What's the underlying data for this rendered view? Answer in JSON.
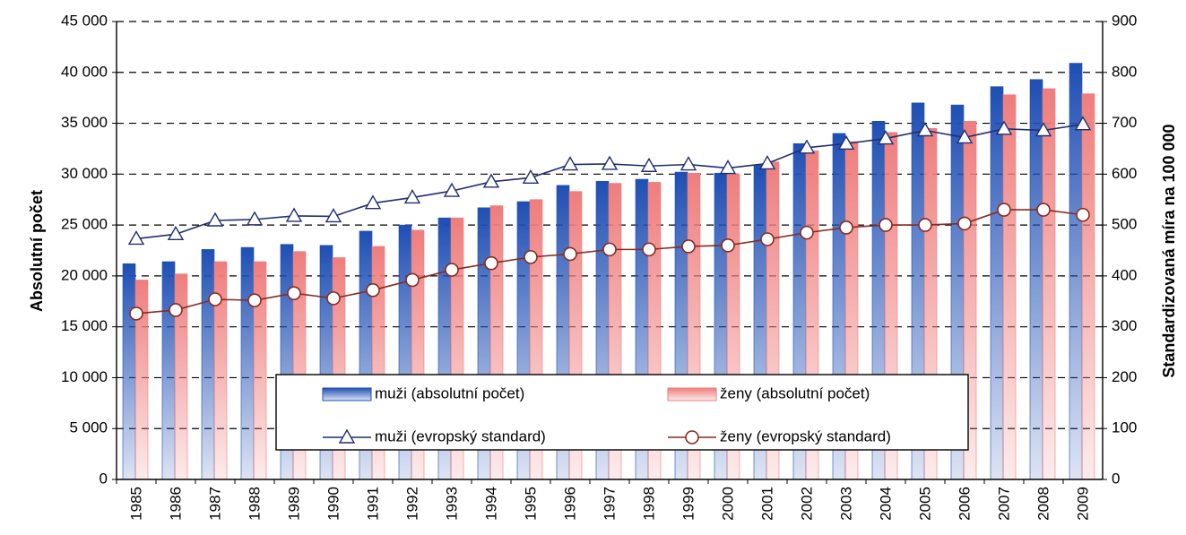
{
  "chart_data": {
    "type": "bar",
    "y_label": "Absolutní počet",
    "y2_label": "Standardizovaná míra na 100 000",
    "categories": [
      "1985",
      "1986",
      "1987",
      "1988",
      "1989",
      "1990",
      "1991",
      "1992",
      "1993",
      "1994",
      "1995",
      "1996",
      "1997",
      "1998",
      "1999",
      "2000",
      "2001",
      "2002",
      "2003",
      "2004",
      "2005",
      "2006",
      "2007",
      "2008",
      "2009"
    ],
    "series": [
      {
        "name": "muži (absolutní počet)",
        "type": "bar",
        "color": "#1f4fb4",
        "values": [
          21200,
          21400,
          22600,
          22800,
          23100,
          23000,
          24400,
          25000,
          25700,
          26700,
          27300,
          28900,
          29300,
          29500,
          30200,
          30100,
          30900,
          33000,
          34000,
          35200,
          37000,
          36800,
          38600,
          39300,
          40900
        ]
      },
      {
        "name": "ženy (absolutní počet)",
        "type": "bar",
        "color": "#ef7d7d",
        "values": [
          19600,
          20200,
          21400,
          21400,
          22400,
          21800,
          22900,
          24500,
          25700,
          26900,
          27500,
          28300,
          29100,
          29200,
          30100,
          30000,
          31200,
          32300,
          33200,
          34100,
          34500,
          35200,
          37800,
          38400,
          37900
        ]
      },
      {
        "name": "muži (evropský standard)",
        "type": "line",
        "marker": "triangle",
        "axis": "y2",
        "color": "#1f2f6f",
        "values": [
          473,
          482,
          509,
          511,
          518,
          517,
          543,
          554,
          567,
          585,
          593,
          619,
          620,
          616,
          619,
          612,
          621,
          652,
          660,
          670,
          686,
          672,
          689,
          686,
          698
        ]
      },
      {
        "name": "ženy (evropský standard)",
        "type": "line",
        "marker": "circle",
        "axis": "y2",
        "color": "#8a2b1f",
        "values": [
          326,
          333,
          354,
          352,
          366,
          356,
          372,
          392,
          412,
          425,
          437,
          443,
          452,
          452,
          458,
          460,
          472,
          485,
          495,
          500,
          500,
          503,
          530,
          530,
          520
        ]
      }
    ],
    "ylim": [
      0,
      45000
    ],
    "yticks": [
      0,
      {
        "value": 5000,
        "label": "5 000"
      },
      {
        "value": 10000,
        "label": "10 000"
      },
      {
        "value": 15000,
        "label": "15 000"
      },
      {
        "value": 20000,
        "label": "20 000"
      },
      {
        "value": 25000,
        "label": "25 000"
      },
      {
        "value": 30000,
        "label": "30 000"
      },
      {
        "value": 35000,
        "label": "35 000"
      },
      {
        "value": 40000,
        "label": "40 000"
      },
      {
        "value": 45000,
        "label": "45 000"
      }
    ],
    "y2lim": [
      0,
      900
    ],
    "y2ticks": [
      0,
      100,
      200,
      300,
      400,
      500,
      600,
      700,
      800,
      900
    ],
    "grid": true
  }
}
